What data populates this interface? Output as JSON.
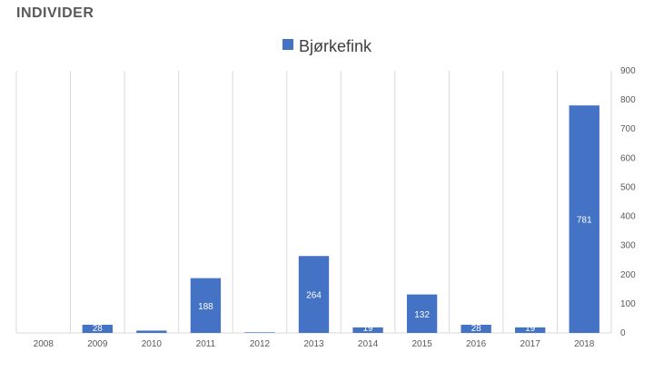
{
  "page": {
    "heading": "INDIVIDER"
  },
  "colors": {
    "bar": "#4472c4",
    "grid": "#d9d9d9",
    "axis_text": "#595959",
    "data_label": "#ffffff"
  },
  "chart_data": {
    "type": "bar",
    "title": "",
    "xlabel": "",
    "ylabel": "",
    "categories": [
      "2008",
      "2009",
      "2010",
      "2011",
      "2012",
      "2013",
      "2014",
      "2015",
      "2016",
      "2017",
      "2018"
    ],
    "series": [
      {
        "name": "Bjørkefink",
        "values": [
          0,
          28,
          8,
          188,
          2,
          264,
          19,
          132,
          28,
          19,
          781
        ],
        "data_labels": [
          "",
          "28",
          "",
          "188",
          "",
          "264",
          "19",
          "132",
          "28",
          "19",
          "781"
        ]
      }
    ],
    "ylim": [
      0,
      900
    ],
    "yticks": [
      0,
      100,
      200,
      300,
      400,
      500,
      600,
      700,
      800,
      900
    ],
    "y_axis_side": "right",
    "grid": "vertical category separators",
    "legend_position": "top-center"
  }
}
